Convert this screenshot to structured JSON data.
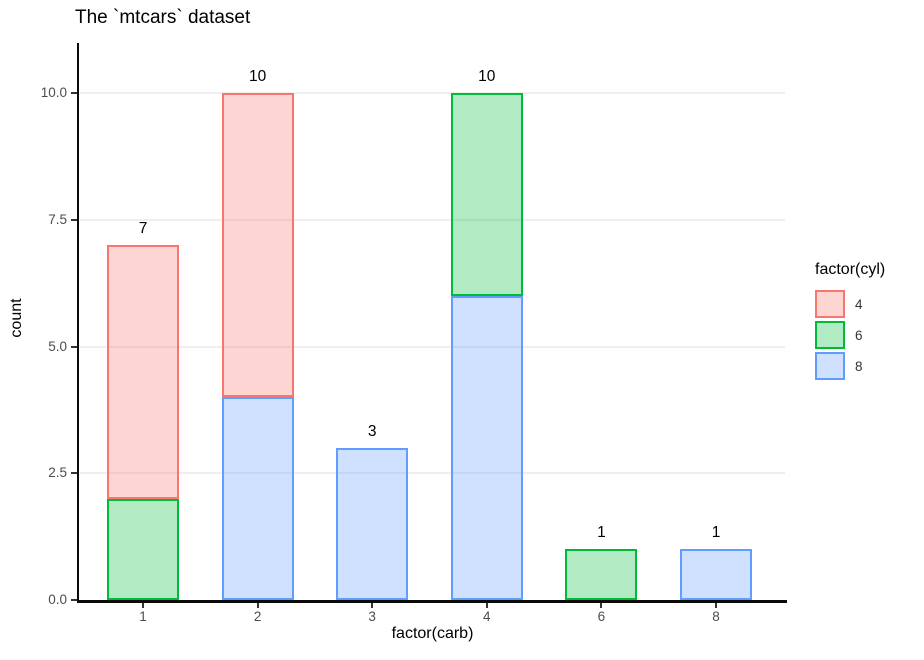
{
  "chart_data": {
    "type": "bar",
    "stacked": true,
    "title": "The `mtcars` dataset",
    "xlabel": "factor(carb)",
    "ylabel": "count",
    "categories": [
      "1",
      "2",
      "3",
      "4",
      "6",
      "8"
    ],
    "series": [
      {
        "name": "4",
        "fill": "rgba(248,118,109,0.3)",
        "stroke": "#f8766d",
        "values": [
          5,
          6,
          0,
          0,
          0,
          0
        ]
      },
      {
        "name": "6",
        "fill": "rgba(0,186,56,0.3)",
        "stroke": "#00ba38",
        "values": [
          2,
          0,
          0,
          4,
          1,
          0
        ]
      },
      {
        "name": "8",
        "fill": "rgba(97,156,255,0.3)",
        "stroke": "#619cff",
        "values": [
          0,
          4,
          3,
          6,
          0,
          1
        ]
      }
    ],
    "stack_order_bottom_to_top": [
      "8",
      "6",
      "4"
    ],
    "totals": [
      7,
      10,
      3,
      10,
      1,
      1
    ],
    "bar_labels": [
      "7",
      "10",
      "3",
      "10",
      "1",
      "1"
    ],
    "y_ticks": [
      0,
      2.5,
      5,
      7.5,
      10
    ],
    "y_tick_labels": [
      "0.0",
      "2.5",
      "5.0",
      "7.5",
      "10.0"
    ],
    "ylim": [
      0,
      10.95
    ],
    "grid": "horizontal-major",
    "legend": {
      "title": "factor(cyl)",
      "position": "right",
      "entries": [
        "4",
        "6",
        "8"
      ]
    },
    "colors": {
      "axis": "#0a0a0a",
      "tick": "#333333",
      "tick_label": "#4d4d4d",
      "grid": "#efefef",
      "bar_label": "#000000",
      "background": "#ffffff"
    }
  }
}
